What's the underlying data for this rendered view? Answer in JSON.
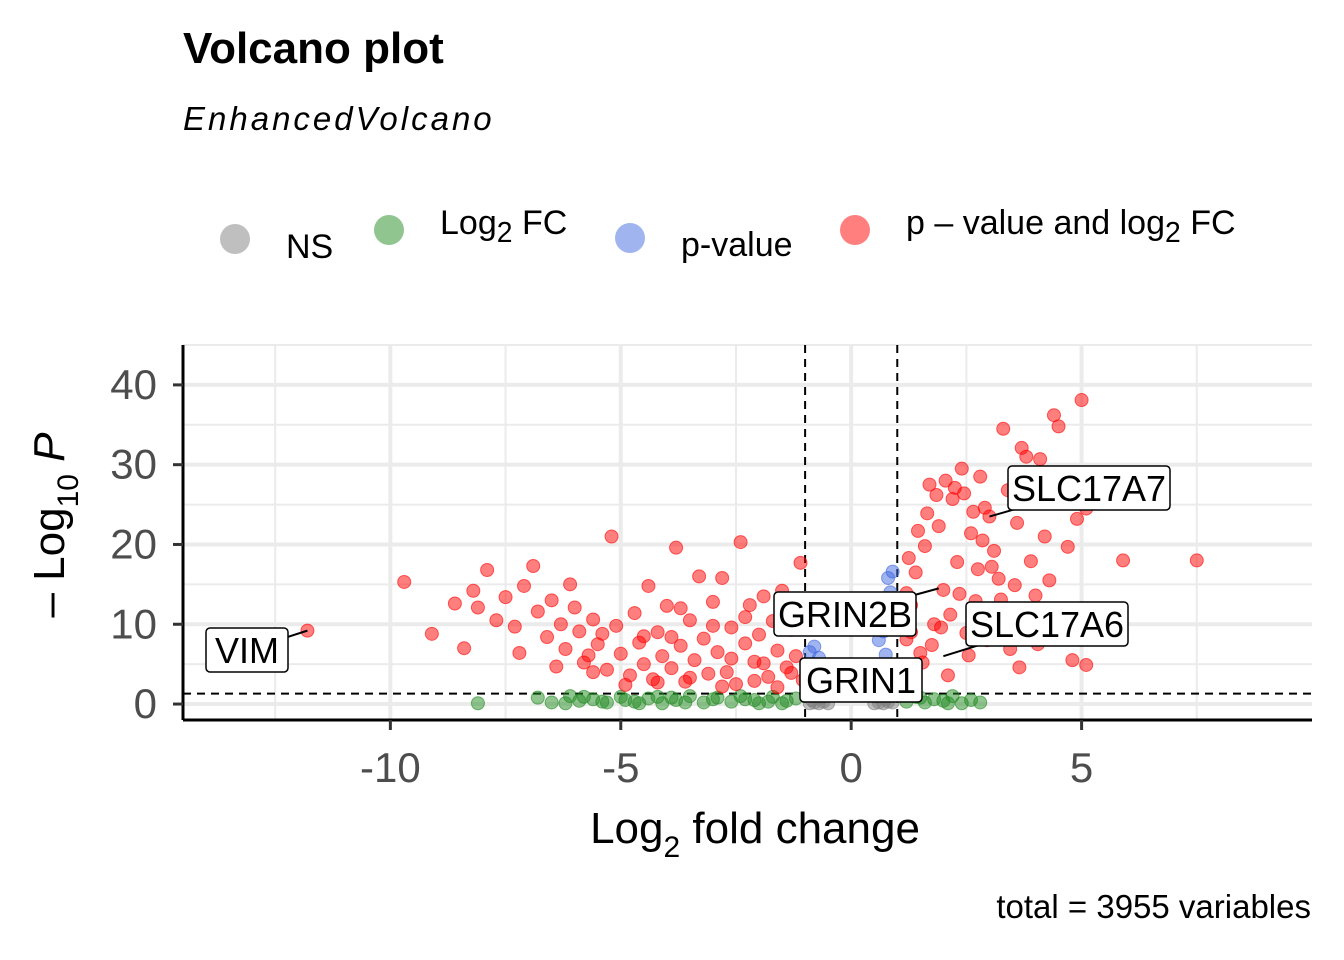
{
  "header": {
    "title": "Volcano plot",
    "subtitle": "EnhancedVolcano",
    "caption": "total = 3955 variables"
  },
  "legend": [
    {
      "label_html": "NS",
      "color": "#7f7f7f"
    },
    {
      "label_html": "Log<sub>2</sub> FC",
      "color": "#228b22"
    },
    {
      "label_html": "p-value",
      "color": "#4169e1"
    },
    {
      "label_html": "p – value and log<sub>2</sub> FC",
      "color": "#ff0000"
    }
  ],
  "chart_data": {
    "type": "scatter",
    "title": "Volcano plot",
    "subtitle": "EnhancedVolcano",
    "xlabel": "Log2 fold change",
    "ylabel": "– Log10 P",
    "xlim": [
      -14.5,
      10
    ],
    "ylim": [
      -2,
      45
    ],
    "x_ticks": [
      -10,
      -5,
      0,
      5
    ],
    "y_ticks": [
      0,
      10,
      20,
      30,
      40
    ],
    "fc_cutoff": 1,
    "p_cutoff_log10": 1.3,
    "grid": true,
    "legend_position": "top",
    "total_variables": 3955,
    "labeled_genes": [
      {
        "gene": "VIM",
        "x": -11.8,
        "y": 9.2
      },
      {
        "gene": "GRIN2B",
        "x": 1.9,
        "y": 14.5
      },
      {
        "gene": "SLC17A7",
        "x": 3.0,
        "y": 23.5
      },
      {
        "gene": "SLC17A6",
        "x": 2.0,
        "y": 6.0
      },
      {
        "gene": "GRIN1",
        "x": 1.3,
        "y": 1.5
      }
    ],
    "series": [
      {
        "name": "NS",
        "color": "#7f7f7f",
        "points": [
          [
            -0.9,
            0.1
          ],
          [
            -0.8,
            0.2
          ],
          [
            -0.7,
            0.1
          ],
          [
            -0.6,
            0.3
          ],
          [
            -0.5,
            0.1
          ],
          [
            0.5,
            0.1
          ],
          [
            0.6,
            0.2
          ],
          [
            0.7,
            0.1
          ],
          [
            0.8,
            0.3
          ],
          [
            0.9,
            0.2
          ],
          [
            -0.85,
            0.5
          ],
          [
            0.75,
            0.6
          ],
          [
            -0.65,
            0.8
          ],
          [
            0.55,
            0.9
          ]
        ]
      },
      {
        "name": "Log2 FC",
        "color": "#228b22",
        "points": [
          [
            -8.1,
            0.1
          ],
          [
            -6.8,
            0.8
          ],
          [
            -6.5,
            0.2
          ],
          [
            -6.1,
            1.0
          ],
          [
            -5.9,
            0.4
          ],
          [
            -5.6,
            0.6
          ],
          [
            -5.3,
            0.2
          ],
          [
            -5.0,
            0.9
          ],
          [
            -4.7,
            0.3
          ],
          [
            -4.4,
            0.7
          ],
          [
            -4.1,
            0.1
          ],
          [
            -3.8,
            0.5
          ],
          [
            -3.5,
            1.0
          ],
          [
            -3.2,
            0.2
          ],
          [
            -2.9,
            0.8
          ],
          [
            -2.6,
            0.3
          ],
          [
            -2.3,
            0.6
          ],
          [
            -2.0,
            0.1
          ],
          [
            -1.7,
            0.9
          ],
          [
            -1.4,
            0.4
          ],
          [
            -1.2,
            0.7
          ],
          [
            1.2,
            0.3
          ],
          [
            1.4,
            0.9
          ],
          [
            1.6,
            0.2
          ],
          [
            1.8,
            0.6
          ],
          [
            2.0,
            0.4
          ],
          [
            2.2,
            1.0
          ],
          [
            2.4,
            0.1
          ],
          [
            2.6,
            0.5
          ],
          [
            2.8,
            0.2
          ],
          [
            -6.2,
            0.1
          ],
          [
            -5.4,
            0.3
          ],
          [
            -4.9,
            0.5
          ],
          [
            -4.2,
            0.9
          ],
          [
            -3.6,
            0.2
          ],
          [
            -3.0,
            0.6
          ],
          [
            -2.4,
            1.0
          ],
          [
            -1.8,
            0.3
          ],
          [
            -1.5,
            0.1
          ],
          [
            1.5,
            0.8
          ],
          [
            2.1,
            0.1
          ],
          [
            -3.9,
            0.8
          ],
          [
            -2.1,
            0.5
          ],
          [
            -4.6,
            0.1
          ],
          [
            -5.8,
            0.9
          ]
        ]
      },
      {
        "name": "p-value",
        "color": "#4169e1",
        "points": [
          [
            -0.9,
            6.5
          ],
          [
            -0.8,
            7.2
          ],
          [
            -0.7,
            5.8
          ],
          [
            -0.6,
            4.9
          ],
          [
            -0.75,
            3.2
          ],
          [
            -0.85,
            2.5
          ],
          [
            0.6,
            8.0
          ],
          [
            0.7,
            9.1
          ],
          [
            0.8,
            10.2
          ],
          [
            0.9,
            11.5
          ],
          [
            0.85,
            14.0
          ],
          [
            0.8,
            15.8
          ],
          [
            0.9,
            16.6
          ],
          [
            0.75,
            6.2
          ],
          [
            0.65,
            4.1
          ],
          [
            0.95,
            12.8
          ],
          [
            0.7,
            2.3
          ],
          [
            -0.95,
            4.0
          ]
        ]
      },
      {
        "name": "p – value and log2 FC",
        "color": "#ff0000",
        "points": [
          [
            -11.8,
            9.2
          ],
          [
            -9.7,
            15.3
          ],
          [
            -9.1,
            8.8
          ],
          [
            -8.6,
            12.6
          ],
          [
            -8.4,
            7.0
          ],
          [
            -8.2,
            14.2
          ],
          [
            -8.1,
            12.1
          ],
          [
            -7.9,
            16.8
          ],
          [
            -7.7,
            10.5
          ],
          [
            -7.5,
            13.4
          ],
          [
            -7.3,
            9.7
          ],
          [
            -7.1,
            14.8
          ],
          [
            -6.9,
            17.3
          ],
          [
            -6.8,
            11.6
          ],
          [
            -6.6,
            8.4
          ],
          [
            -6.5,
            13.0
          ],
          [
            -6.3,
            10.0
          ],
          [
            -6.2,
            6.9
          ],
          [
            -6.0,
            12.1
          ],
          [
            -5.9,
            9.1
          ],
          [
            -5.8,
            5.2
          ],
          [
            -5.6,
            10.6
          ],
          [
            -5.5,
            7.5
          ],
          [
            -5.3,
            4.3
          ],
          [
            -5.2,
            21.0
          ],
          [
            -5.1,
            9.8
          ],
          [
            -5.0,
            6.3
          ],
          [
            -4.8,
            3.6
          ],
          [
            -4.7,
            11.4
          ],
          [
            -4.6,
            7.7
          ],
          [
            -4.5,
            5.0
          ],
          [
            -4.4,
            14.8
          ],
          [
            -4.3,
            3.1
          ],
          [
            -4.2,
            9.0
          ],
          [
            -4.1,
            6.0
          ],
          [
            -4.0,
            12.3
          ],
          [
            -3.9,
            4.5
          ],
          [
            -3.8,
            19.6
          ],
          [
            -3.7,
            7.3
          ],
          [
            -3.6,
            2.8
          ],
          [
            -3.5,
            10.5
          ],
          [
            -3.4,
            5.5
          ],
          [
            -3.3,
            16.0
          ],
          [
            -3.2,
            8.2
          ],
          [
            -3.1,
            3.8
          ],
          [
            -3.0,
            12.8
          ],
          [
            -2.9,
            6.5
          ],
          [
            -2.8,
            15.8
          ],
          [
            -2.7,
            4.0
          ],
          [
            -2.6,
            9.6
          ],
          [
            -2.5,
            2.5
          ],
          [
            -2.4,
            20.3
          ],
          [
            -2.3,
            7.6
          ],
          [
            -2.2,
            12.4
          ],
          [
            -2.1,
            5.3
          ],
          [
            -2.0,
            8.7
          ],
          [
            -1.9,
            13.5
          ],
          [
            -1.8,
            3.4
          ],
          [
            -1.7,
            10.4
          ],
          [
            -1.6,
            6.7
          ],
          [
            -1.5,
            14.2
          ],
          [
            -1.4,
            4.6
          ],
          [
            -1.3,
            9.3
          ],
          [
            -1.2,
            6.0
          ],
          [
            -1.1,
            17.7
          ],
          [
            -1.05,
            3.0
          ],
          [
            -5.7,
            6.1
          ],
          [
            -4.9,
            2.4
          ],
          [
            -4.2,
            2.7
          ],
          [
            -3.5,
            3.3
          ],
          [
            -2.8,
            2.2
          ],
          [
            -2.1,
            2.9
          ],
          [
            -1.6,
            2.1
          ],
          [
            -6.4,
            4.7
          ],
          [
            -7.2,
            6.4
          ],
          [
            -5.4,
            8.8
          ],
          [
            -3.9,
            8.4
          ],
          [
            -3.0,
            9.8
          ],
          [
            -2.3,
            10.9
          ],
          [
            -1.9,
            5.1
          ],
          [
            -1.3,
            3.9
          ],
          [
            -6.1,
            15.0
          ],
          [
            -5.6,
            4.0
          ],
          [
            -4.5,
            8.5
          ],
          [
            -3.7,
            12.0
          ],
          [
            -2.6,
            5.7
          ],
          [
            1.1,
            4.5
          ],
          [
            1.2,
            8.1
          ],
          [
            1.3,
            12.4
          ],
          [
            1.4,
            16.5
          ],
          [
            1.5,
            6.4
          ],
          [
            1.6,
            19.8
          ],
          [
            1.7,
            27.5
          ],
          [
            1.8,
            10.0
          ],
          [
            1.9,
            22.3
          ],
          [
            2.0,
            14.3
          ],
          [
            2.1,
            3.6
          ],
          [
            2.2,
            25.7
          ],
          [
            2.3,
            17.8
          ],
          [
            2.4,
            29.5
          ],
          [
            2.5,
            8.9
          ],
          [
            2.6,
            21.4
          ],
          [
            2.7,
            12.9
          ],
          [
            2.8,
            28.5
          ],
          [
            2.9,
            24.6
          ],
          [
            3.0,
            23.5
          ],
          [
            3.1,
            19.2
          ],
          [
            3.2,
            15.7
          ],
          [
            3.3,
            34.5
          ],
          [
            3.4,
            26.8
          ],
          [
            3.5,
            10.8
          ],
          [
            3.6,
            22.7
          ],
          [
            3.7,
            32.1
          ],
          [
            3.8,
            31.0
          ],
          [
            3.9,
            17.9
          ],
          [
            4.0,
            13.6
          ],
          [
            4.1,
            30.7
          ],
          [
            4.2,
            21.0
          ],
          [
            4.3,
            15.5
          ],
          [
            4.4,
            36.2
          ],
          [
            4.5,
            34.8
          ],
          [
            4.6,
            8.6
          ],
          [
            4.7,
            19.7
          ],
          [
            4.8,
            5.5
          ],
          [
            4.9,
            23.2
          ],
          [
            5.0,
            38.1
          ],
          [
            5.1,
            4.9
          ],
          [
            5.1,
            24.5
          ],
          [
            5.3,
            11.8
          ],
          [
            5.9,
            18.0
          ],
          [
            7.5,
            18.0
          ],
          [
            1.15,
            2.3
          ],
          [
            1.35,
            3.0
          ],
          [
            1.55,
            5.2
          ],
          [
            1.75,
            7.4
          ],
          [
            1.95,
            9.6
          ],
          [
            2.15,
            11.2
          ],
          [
            2.35,
            13.8
          ],
          [
            2.55,
            6.1
          ],
          [
            2.75,
            16.9
          ],
          [
            2.95,
            8.0
          ],
          [
            3.15,
            11.6
          ],
          [
            3.45,
            6.9
          ],
          [
            3.65,
            4.6
          ],
          [
            3.85,
            9.2
          ],
          [
            1.25,
            18.3
          ],
          [
            1.45,
            21.7
          ],
          [
            1.65,
            23.9
          ],
          [
            1.85,
            26.2
          ],
          [
            2.05,
            28.0
          ],
          [
            2.25,
            27.1
          ],
          [
            2.45,
            26.4
          ],
          [
            2.65,
            24.1
          ],
          [
            2.85,
            20.5
          ],
          [
            3.05,
            17.2
          ],
          [
            3.25,
            13.1
          ],
          [
            3.55,
            14.9
          ],
          [
            4.25,
            10.4
          ],
          [
            4.05,
            7.5
          ],
          [
            1.1,
            11.0
          ],
          [
            1.2,
            13.9
          ],
          [
            1.3,
            9.0
          ]
        ]
      }
    ]
  }
}
